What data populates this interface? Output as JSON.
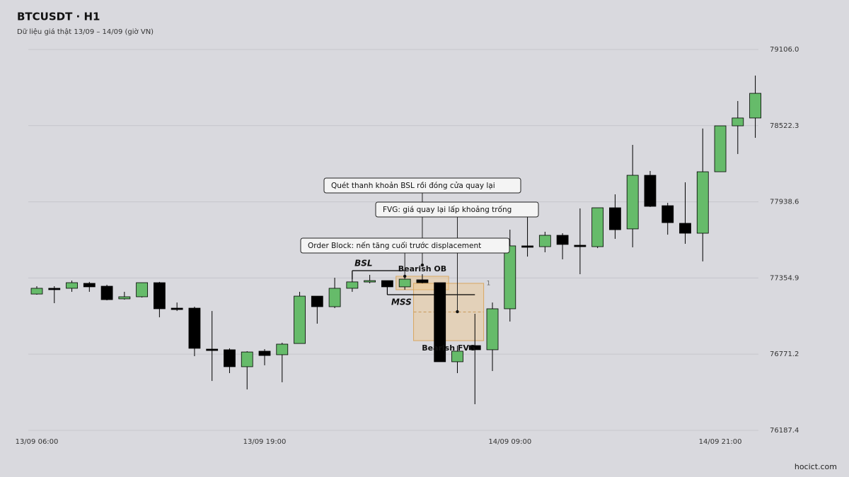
{
  "chart_data": {
    "type": "candlestick",
    "title": "BTCUSDT · H1",
    "subtitle": "Dữ liệu giá thật 13/09 – 14/09 (giờ VN)",
    "source": "hocict.com",
    "categories": [
      "13/09 06:00",
      null,
      null,
      null,
      null,
      null,
      null,
      null,
      null,
      null,
      null,
      null,
      null,
      "13/09 19:00",
      null,
      null,
      null,
      null,
      null,
      null,
      null,
      null,
      null,
      null,
      null,
      null,
      null,
      "14/09 09:00",
      null,
      null,
      null,
      null,
      null,
      null,
      null,
      null,
      null,
      null,
      null,
      "14/09 21:00",
      null,
      null
    ],
    "open": [
      77232,
      77276,
      77276,
      77314,
      77292,
      77195,
      77211,
      77319,
      77124,
      77124,
      76810,
      76805,
      76675,
      76794,
      76767,
      76853,
      77216,
      77135,
      77276,
      77325,
      77335,
      77287,
      77341,
      77319,
      76713,
      76837,
      76805,
      77119,
      77601,
      77595,
      77682,
      77606,
      77595,
      77893,
      77731,
      78142,
      77909,
      77774,
      77698,
      78169,
      78521,
      78581
    ],
    "high": [
      77292,
      77292,
      77335,
      77325,
      77303,
      77249,
      77319,
      77325,
      77167,
      77135,
      77102,
      76816,
      76794,
      76810,
      76859,
      77249,
      77216,
      77357,
      77400,
      77379,
      77335,
      77373,
      77384,
      77319,
      76837,
      77081,
      77167,
      77725,
      77823,
      77709,
      77698,
      77888,
      77893,
      77996,
      78375,
      78175,
      77931,
      78088,
      78500,
      78521,
      78711,
      78906
    ],
    "low": [
      77227,
      77162,
      77249,
      77249,
      77184,
      77189,
      77205,
      77054,
      77102,
      76756,
      76566,
      76626,
      76501,
      76686,
      76556,
      76853,
      77005,
      77124,
      77249,
      77314,
      77281,
      77265,
      77314,
      76713,
      76626,
      76388,
      76642,
      77021,
      77519,
      77552,
      77498,
      77384,
      77584,
      77655,
      77590,
      77899,
      77687,
      77617,
      77482,
      78169,
      78305,
      78429
    ],
    "close": [
      77276,
      77270,
      77319,
      77287,
      77189,
      77211,
      77319,
      77119,
      77120,
      76816,
      76808,
      76675,
      76788,
      76761,
      76848,
      77216,
      77135,
      77276,
      77325,
      77335,
      77287,
      77346,
      77319,
      76713,
      76794,
      76805,
      77119,
      77601,
      77598,
      77682,
      77612,
      77595,
      77893,
      77725,
      78142,
      77904,
      77779,
      77698,
      78169,
      78521,
      78581,
      78770
    ],
    "up_color": "#66bb6a",
    "down_color": "#000000",
    "ylim": [
      76187.4,
      79106.0
    ],
    "yticks": [
      {
        "value": 79106.0,
        "label": "79106.0"
      },
      78522.3,
      77938.6,
      77354.9,
      76771.2,
      76187.4
    ],
    "grid": true,
    "levels": [
      {
        "label": "BSL",
        "value": 77411,
        "from": 18,
        "to": 21
      },
      {
        "label": "MSS",
        "value": 77227,
        "from": 20,
        "to": 25
      }
    ],
    "zones": [
      {
        "label": "Bearish OB",
        "top": 77368,
        "bottom": 77265,
        "from": 21,
        "to": 23
      },
      {
        "label": "Bearish FVG",
        "top": 77314,
        "bottom": 76875,
        "from": 22,
        "to": 25,
        "fib": [
          1,
          0.5,
          0
        ]
      }
    ],
    "callouts": [
      {
        "text": "Quét thanh khoản BSL rồi đóng cửa quay lại",
        "at": 22,
        "value": 77454
      },
      {
        "text": "FVG: giá quay lại lấp khoảng trống",
        "at": 24,
        "value": 77097
      },
      {
        "text": "Order Block: nến tăng cuối trước displacement",
        "at": 21,
        "value": 77368
      }
    ]
  }
}
